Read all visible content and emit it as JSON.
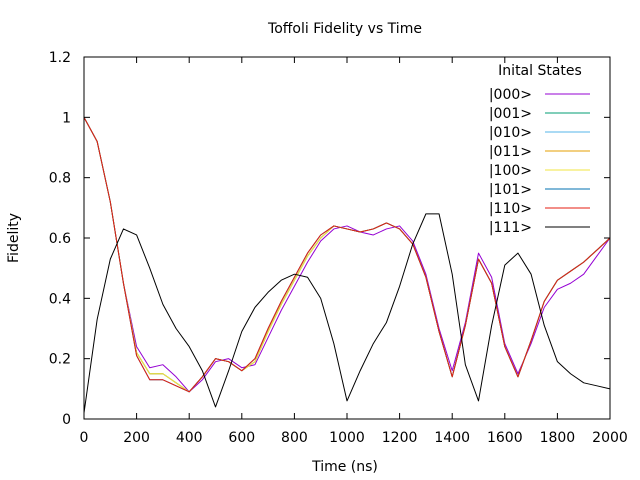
{
  "chart_data": {
    "type": "line",
    "title": "Toffoli Fidelity vs Time",
    "xlabel": "Time (ns)",
    "ylabel": "Fidelity",
    "xlim": [
      0,
      2000
    ],
    "ylim": [
      0,
      1.2
    ],
    "xticks": [
      0,
      200,
      400,
      600,
      800,
      1000,
      1200,
      1400,
      1600,
      1800,
      2000
    ],
    "yticks": [
      0,
      0.2,
      0.4,
      0.6,
      0.8,
      1,
      1.2
    ],
    "ytick_labels": [
      "0",
      "0.2",
      "0.4",
      "0.6",
      "0.8",
      "1",
      "1.2"
    ],
    "legend": {
      "title": "Inital States",
      "position": "top-right"
    },
    "grid": false,
    "x": [
      0,
      50,
      100,
      150,
      200,
      250,
      300,
      350,
      400,
      450,
      500,
      550,
      600,
      650,
      700,
      750,
      800,
      850,
      900,
      950,
      1000,
      1050,
      1100,
      1150,
      1200,
      1250,
      1300,
      1350,
      1400,
      1450,
      1500,
      1550,
      1600,
      1650,
      1700,
      1750,
      1800,
      1850,
      1900,
      1950,
      2000
    ],
    "series": [
      {
        "name": "|000>",
        "color": "#9400d3",
        "values": [
          1.0,
          0.92,
          0.72,
          0.45,
          0.24,
          0.17,
          0.18,
          0.14,
          0.09,
          0.13,
          0.19,
          0.2,
          0.17,
          0.18,
          0.27,
          0.36,
          0.44,
          0.52,
          0.59,
          0.63,
          0.64,
          0.62,
          0.61,
          0.63,
          0.64,
          0.59,
          0.48,
          0.3,
          0.16,
          0.32,
          0.55,
          0.47,
          0.25,
          0.15,
          0.25,
          0.37,
          0.43,
          0.45,
          0.48,
          0.54,
          0.6
        ]
      },
      {
        "name": "|001>",
        "color": "#009e73",
        "values": [
          1.0,
          0.92,
          0.72,
          0.45,
          0.22,
          0.15,
          0.15,
          0.12,
          0.09,
          0.14,
          0.2,
          0.19,
          0.16,
          0.19,
          0.29,
          0.38,
          0.46,
          0.54,
          0.6,
          0.64,
          0.63,
          0.62,
          0.63,
          0.65,
          0.63,
          0.58,
          0.47,
          0.29,
          0.14,
          0.31,
          0.53,
          0.45,
          0.24,
          0.14,
          0.26,
          0.39,
          0.46,
          0.49,
          0.52,
          0.56,
          0.6
        ]
      },
      {
        "name": "|010>",
        "color": "#56b4e9",
        "values": [
          1.0,
          0.92,
          0.72,
          0.45,
          0.22,
          0.15,
          0.15,
          0.12,
          0.09,
          0.14,
          0.2,
          0.19,
          0.16,
          0.19,
          0.29,
          0.38,
          0.46,
          0.54,
          0.6,
          0.64,
          0.63,
          0.62,
          0.63,
          0.65,
          0.63,
          0.58,
          0.47,
          0.29,
          0.14,
          0.31,
          0.53,
          0.45,
          0.24,
          0.14,
          0.26,
          0.39,
          0.46,
          0.49,
          0.52,
          0.56,
          0.6
        ]
      },
      {
        "name": "|011>",
        "color": "#e69f00",
        "values": [
          1.0,
          0.92,
          0.72,
          0.45,
          0.22,
          0.15,
          0.15,
          0.12,
          0.09,
          0.14,
          0.2,
          0.19,
          0.16,
          0.19,
          0.29,
          0.38,
          0.46,
          0.54,
          0.6,
          0.64,
          0.63,
          0.62,
          0.63,
          0.65,
          0.63,
          0.58,
          0.47,
          0.29,
          0.14,
          0.31,
          0.53,
          0.45,
          0.24,
          0.14,
          0.26,
          0.39,
          0.46,
          0.49,
          0.52,
          0.56,
          0.6
        ]
      },
      {
        "name": "|100>",
        "color": "#f0e442",
        "values": [
          1.0,
          0.92,
          0.72,
          0.45,
          0.22,
          0.15,
          0.15,
          0.12,
          0.09,
          0.14,
          0.2,
          0.19,
          0.16,
          0.19,
          0.29,
          0.38,
          0.46,
          0.54,
          0.6,
          0.64,
          0.63,
          0.62,
          0.63,
          0.65,
          0.63,
          0.58,
          0.47,
          0.29,
          0.14,
          0.31,
          0.53,
          0.45,
          0.24,
          0.14,
          0.26,
          0.39,
          0.46,
          0.49,
          0.52,
          0.56,
          0.6
        ]
      },
      {
        "name": "|101>",
        "color": "#0072b2",
        "values": [
          1.0,
          0.92,
          0.72,
          0.45,
          0.21,
          0.13,
          0.13,
          0.11,
          0.09,
          0.14,
          0.2,
          0.19,
          0.16,
          0.2,
          0.3,
          0.39,
          0.47,
          0.55,
          0.61,
          0.64,
          0.63,
          0.62,
          0.63,
          0.65,
          0.63,
          0.58,
          0.47,
          0.29,
          0.14,
          0.31,
          0.53,
          0.45,
          0.24,
          0.14,
          0.26,
          0.39,
          0.46,
          0.49,
          0.52,
          0.56,
          0.6
        ]
      },
      {
        "name": "|110>",
        "color": "#e51e10",
        "values": [
          1.0,
          0.92,
          0.72,
          0.45,
          0.21,
          0.13,
          0.13,
          0.11,
          0.09,
          0.14,
          0.2,
          0.19,
          0.16,
          0.2,
          0.3,
          0.39,
          0.47,
          0.55,
          0.61,
          0.64,
          0.63,
          0.62,
          0.63,
          0.65,
          0.63,
          0.58,
          0.47,
          0.29,
          0.14,
          0.31,
          0.53,
          0.45,
          0.24,
          0.14,
          0.26,
          0.39,
          0.46,
          0.49,
          0.52,
          0.56,
          0.6
        ]
      },
      {
        "name": "|111>",
        "color": "#000000",
        "values": [
          0.02,
          0.33,
          0.53,
          0.63,
          0.61,
          0.5,
          0.38,
          0.3,
          0.24,
          0.16,
          0.04,
          0.16,
          0.29,
          0.37,
          0.42,
          0.46,
          0.48,
          0.47,
          0.4,
          0.25,
          0.06,
          0.16,
          0.25,
          0.32,
          0.44,
          0.58,
          0.68,
          0.68,
          0.48,
          0.18,
          0.06,
          0.31,
          0.51,
          0.55,
          0.48,
          0.31,
          0.19,
          0.15,
          0.12,
          0.11,
          0.1
        ]
      }
    ]
  }
}
